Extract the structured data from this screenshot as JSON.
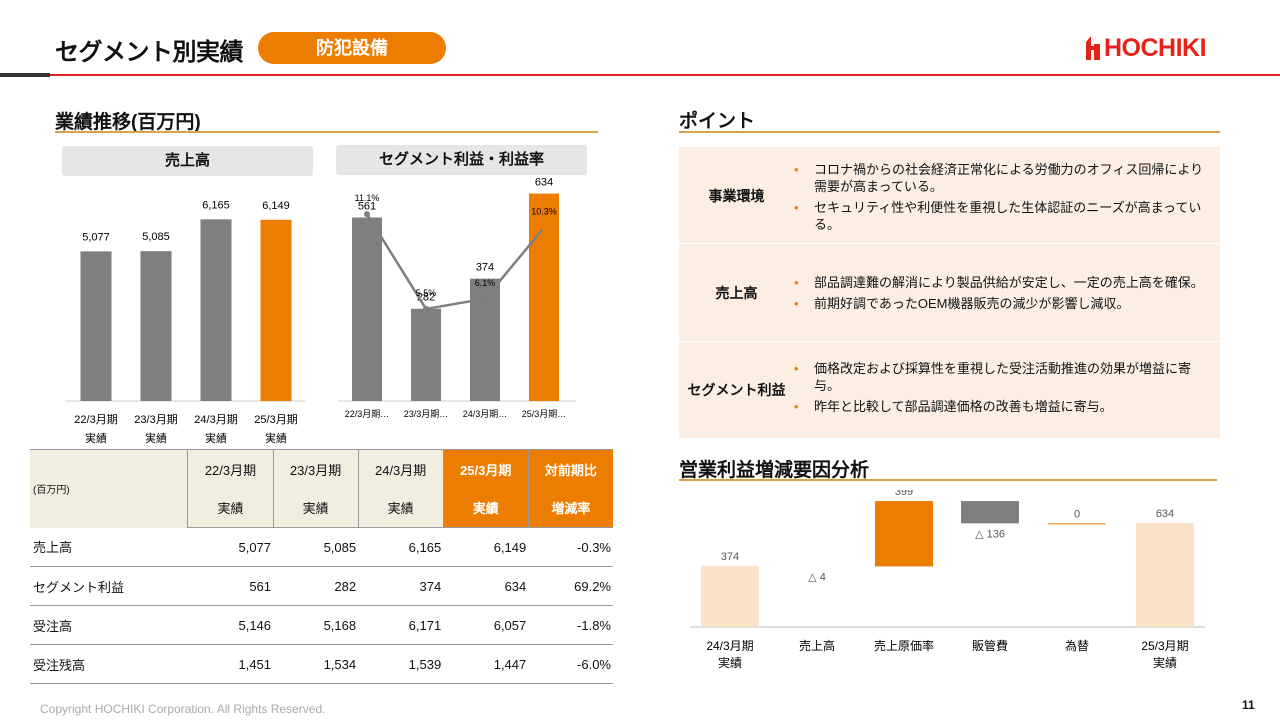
{
  "header": {
    "title": "セグメント別実績",
    "badge": "防犯設備",
    "logo": "HOCHIKI"
  },
  "left": {
    "section_title": "業績推移(百万円)",
    "sales_box": "売上高",
    "profit_box": "セグメント利益・利益率"
  },
  "right": {
    "points_title": "ポイント",
    "waterfall_title": "営業利益増減要因分析"
  },
  "points": [
    {
      "label": "事業環境",
      "bullets": [
        "コロナ禍からの社会経済正常化による労働力のオフィス回帰により需要が高まっている。",
        "セキュリティ性や利便性を重視した生体認証のニーズが高まっている。"
      ]
    },
    {
      "label": "売上高",
      "bullets": [
        "部品調達難の解消により製品供給が安定し、一定の売上高を確保。",
        "前期好調であったOEM機器販売の減少が影響し減収。"
      ]
    },
    {
      "label": "セグメント利益",
      "bullets": [
        "価格改定および採算性を重視した受注活動推進の効果が増益に寄与。",
        "昨年と比較して部品調達価格の改善も増益に寄与。"
      ]
    }
  ],
  "table": {
    "unit": "(百万円)",
    "columns": [
      {
        "top": "22/3月期",
        "bottom": "実績"
      },
      {
        "top": "23/3月期",
        "bottom": "実績"
      },
      {
        "top": "24/3月期",
        "bottom": "実績"
      },
      {
        "top": "25/3月期",
        "bottom": "実績"
      },
      {
        "top": "対前期比",
        "bottom": "増減率"
      }
    ],
    "rows": [
      {
        "label": "売上高",
        "cells": [
          "5,077",
          "5,085",
          "6,165",
          "6,149",
          "-0.3%"
        ]
      },
      {
        "label": "セグメント利益",
        "cells": [
          "561",
          "282",
          "374",
          "634",
          "69.2%"
        ]
      },
      {
        "label": "受注高",
        "cells": [
          "5,146",
          "5,168",
          "6,171",
          "6,057",
          "-1.8%"
        ]
      },
      {
        "label": "受注残高",
        "cells": [
          "1,451",
          "1,534",
          "1,539",
          "1,447",
          "-6.0%"
        ]
      }
    ]
  },
  "colors": {
    "orange": "#ED7D00",
    "gray": "#7F7F7F",
    "light_orange": "#FBE2C8",
    "red": "#E5231A"
  },
  "chart_data": [
    {
      "type": "bar",
      "title": "売上高",
      "categories": [
        "22/3月期\n実績",
        "23/3月期\n実績",
        "24/3月期\n実績",
        "25/3月期\n実績"
      ],
      "values": [
        5077,
        5085,
        6165,
        6149
      ],
      "value_labels": [
        "5,077",
        "5,085",
        "6,165",
        "6,149"
      ],
      "ylim": [
        0,
        7500
      ],
      "highlight_last": true
    },
    {
      "type": "bar",
      "title": "セグメント利益・利益率",
      "categories": [
        "22/3月期…",
        "23/3月期…",
        "24/3月期…",
        "25/3月期…"
      ],
      "series": [
        {
          "values": [
            561,
            282,
            374,
            634
          ],
          "value_labels": [
            "561",
            "282",
            "374",
            "634"
          ]
        },
        {
          "values": [
            11.1,
            5.5,
            6.1,
            10.3
          ],
          "value_labels": [
            "11.1%",
            "5.5%",
            "6.1%",
            "10.3%"
          ],
          "type": "line"
        }
      ],
      "ylim": [
        0,
        700
      ],
      "y2lim": [
        0,
        13
      ],
      "highlight_last": true
    },
    {
      "type": "bar",
      "subtype": "waterfall",
      "title": "営業利益増減要因分析",
      "categories": [
        "24/3月期\n実績",
        "売上高",
        "売上原価率",
        "販管費",
        "為替",
        "25/3月期\n実績"
      ],
      "values": [
        374,
        -4,
        399,
        -136,
        0,
        634
      ],
      "value_labels": [
        "374",
        "△ 4",
        "399",
        "△ 136",
        "0",
        "634"
      ],
      "kinds": [
        "total",
        "delta",
        "delta",
        "delta",
        "delta",
        "total"
      ],
      "ylim": [
        0,
        800
      ]
    }
  ],
  "footer": {
    "copyright": "Copyright HOCHIKI Corporation. All Rights Reserved.",
    "page": "11"
  }
}
